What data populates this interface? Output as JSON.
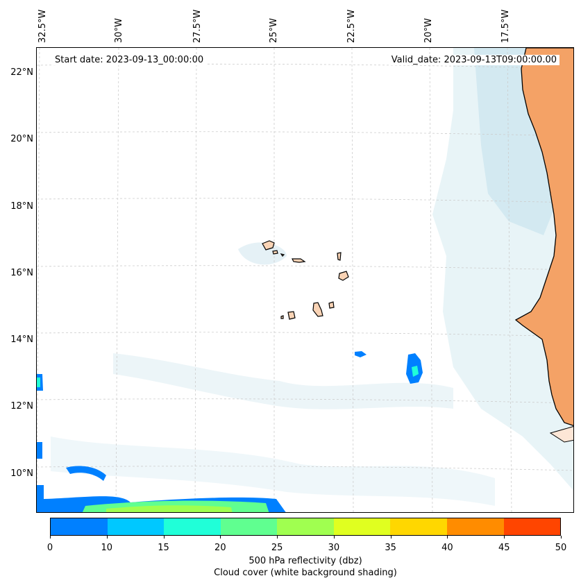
{
  "map": {
    "start_date": "Start date: 2023-09-13_00:00:00",
    "valid_date": "Valid_date: 2023-09-13T09:00:00.00",
    "lon_labels": [
      "32.5°W",
      "30°W",
      "27.5°W",
      "25°W",
      "22.5°W",
      "20°W",
      "17.5°W"
    ],
    "lat_labels": [
      "22°N",
      "20°N",
      "18°N",
      "16°N",
      "14°N",
      "12°N",
      "10°N"
    ],
    "land_color": "#f4a266",
    "cloud_color": "#b9dde8",
    "coastline_color": "#000000",
    "gridline_color": "#cccccc"
  },
  "colorbar": {
    "ticks": [
      "0",
      "10",
      "15",
      "20",
      "25",
      "30",
      "35",
      "40",
      "45",
      "50"
    ],
    "colors": [
      "#0080ff",
      "#00c8ff",
      "#20ffd8",
      "#60ff90",
      "#a0ff50",
      "#e0ff20",
      "#ffd700",
      "#ff8c00",
      "#ff4500"
    ],
    "label_line1": "500 hPa reflectivity (dbz)",
    "label_line2": "Cloud cover (white background shading)"
  }
}
